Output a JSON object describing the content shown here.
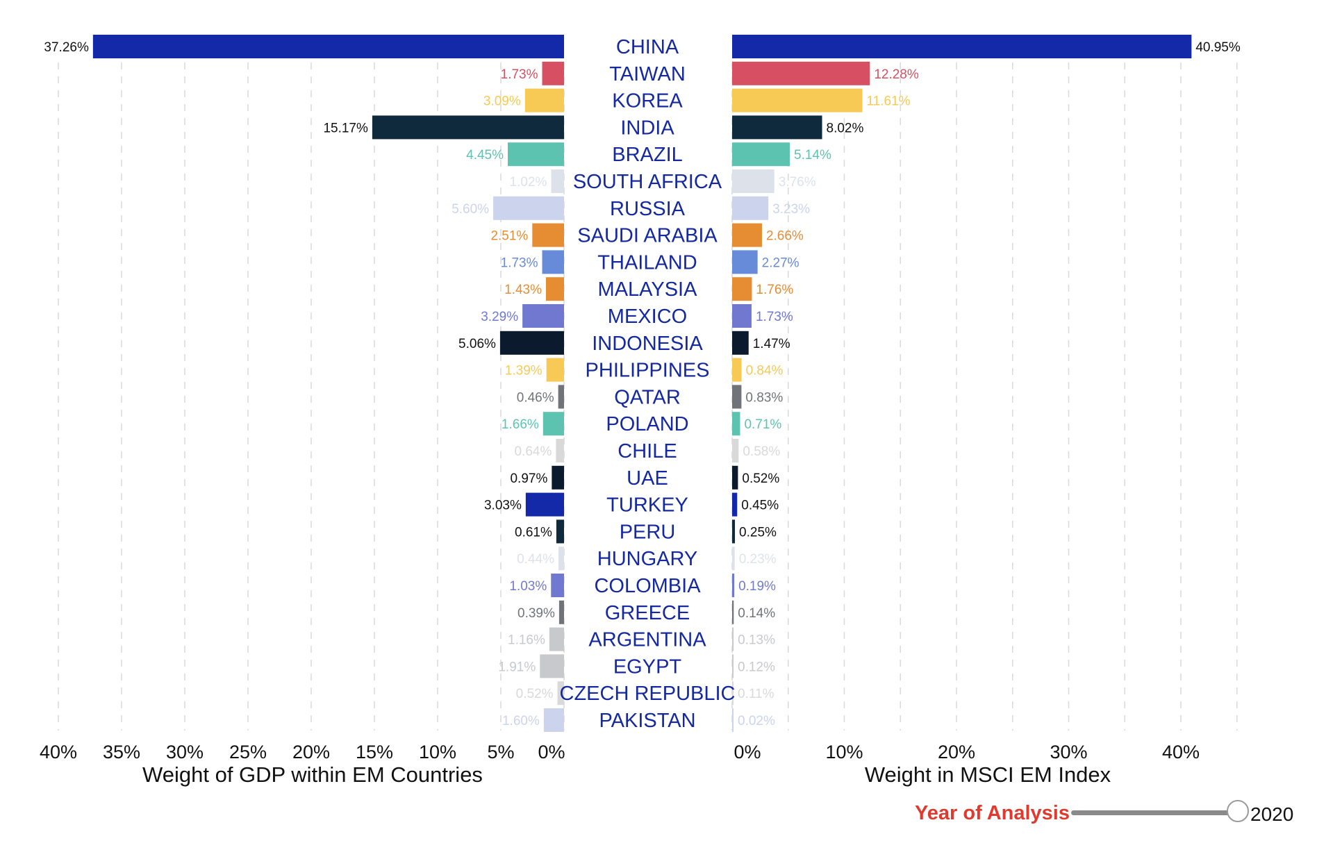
{
  "chart_data": {
    "type": "bar",
    "layout": "butterfly",
    "categories": [
      "CHINA",
      "TAIWAN",
      "KOREA",
      "INDIA",
      "BRAZIL",
      "SOUTH AFRICA",
      "RUSSIA",
      "SAUDI ARABIA",
      "THAILAND",
      "MALAYSIA",
      "MEXICO",
      "INDONESIA",
      "PHILIPPINES",
      "QATAR",
      "POLAND",
      "CHILE",
      "UAE",
      "TURKEY",
      "PERU",
      "HUNGARY",
      "COLOMBIA",
      "GREECE",
      "ARGENTINA",
      "EGYPT",
      "CZECH REPUBLIC",
      "PAKISTAN"
    ],
    "colors": [
      "#1329a8",
      "#d64f62",
      "#f7c955",
      "#0f2a3d",
      "#5cc3b0",
      "#dde2ea",
      "#ccd3ec",
      "#e68d33",
      "#678bd9",
      "#e68d33",
      "#7079cf",
      "#0b1a2c",
      "#f7c955",
      "#707479",
      "#5cc3b0",
      "#d9d9d9",
      "#0b1a2c",
      "#1329a8",
      "#0f2a3d",
      "#dde2ea",
      "#7079cf",
      "#707479",
      "#c7c9cc",
      "#c7c9cc",
      "#d9d9d9",
      "#ccd3ec"
    ],
    "series": [
      {
        "name": "Weight of GDP within EM Countries",
        "side": "left",
        "values": [
          37.26,
          1.73,
          3.09,
          15.17,
          4.45,
          1.02,
          5.6,
          2.51,
          1.73,
          1.43,
          3.29,
          5.06,
          1.39,
          0.46,
          1.66,
          0.64,
          0.97,
          3.03,
          0.61,
          0.44,
          1.03,
          0.39,
          1.16,
          1.91,
          0.52,
          1.6
        ],
        "labels": [
          "37.26%",
          "1.73%",
          "3.09%",
          "15.17%",
          "4.45%",
          "1.02%",
          "5.60%",
          "2.51%",
          "1.73%",
          "1.43%",
          "3.29%",
          "5.06%",
          "1.39%",
          "0.46%",
          "1.66%",
          "0.64%",
          "0.97%",
          "3.03%",
          "0.61%",
          "0.44%",
          "1.03%",
          "0.39%",
          "1.16%",
          "1.91%",
          "0.52%",
          "1.60%"
        ]
      },
      {
        "name": "Weight in MSCI EM Index",
        "side": "right",
        "values": [
          40.95,
          12.28,
          11.61,
          8.02,
          5.14,
          3.76,
          3.23,
          2.66,
          2.27,
          1.76,
          1.73,
          1.47,
          0.84,
          0.83,
          0.71,
          0.58,
          0.52,
          0.45,
          0.25,
          0.23,
          0.19,
          0.14,
          0.13,
          0.12,
          0.11,
          0.02
        ],
        "labels": [
          "40.95%",
          "12.28%",
          "11.61%",
          "8.02%",
          "5.14%",
          "3.76%",
          "3.23%",
          "2.66%",
          "2.27%",
          "1.76%",
          "1.73%",
          "1.47%",
          "0.84%",
          "0.83%",
          "0.71%",
          "0.58%",
          "0.52%",
          "0.45%",
          "0.25%",
          "0.23%",
          "0.19%",
          "0.14%",
          "0.13%",
          "0.12%",
          "0.11%",
          "0.02%"
        ]
      }
    ],
    "left_axis": {
      "xlabel": "Weight of GDP within EM Countries",
      "xlim": [
        40,
        0
      ],
      "ticks": [
        40,
        35,
        30,
        25,
        20,
        15,
        10,
        5,
        0
      ],
      "tick_labels": [
        "40%",
        "35%",
        "30%",
        "25%",
        "20%",
        "15%",
        "10%",
        "5%",
        "0%"
      ]
    },
    "right_axis": {
      "xlabel": "Weight in MSCI EM Index",
      "xlim": [
        0,
        45
      ],
      "ticks": [
        0,
        10,
        20,
        30,
        40
      ],
      "tick_labels": [
        "0%",
        "10%",
        "20%",
        "30%",
        "40%"
      ],
      "grid_ticks": [
        0,
        5,
        10,
        15,
        20,
        25,
        30,
        35,
        40,
        45
      ]
    },
    "grid": true
  },
  "slider": {
    "title": "Year of Analysis",
    "value": "2020",
    "position": 1.0
  },
  "colors": {
    "country_label": "#1428a0",
    "slider_title": "#e03a2f"
  }
}
